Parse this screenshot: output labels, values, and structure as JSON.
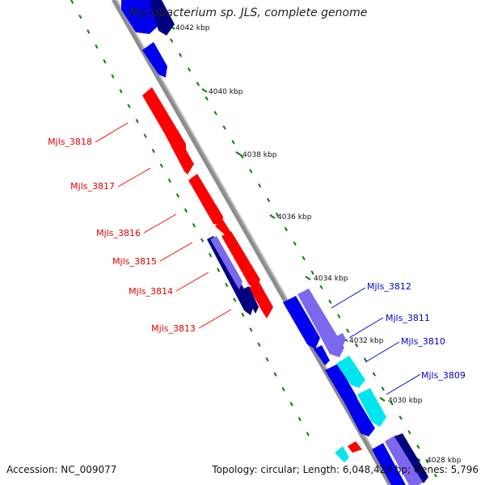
{
  "title": "Mycobacterium sp. JLS, complete genome",
  "footer": {
    "accession": "Accession: NC_009077",
    "summary": "Topology: circular; Length: 6,048,425 bp; Genes: 5,796"
  },
  "ticks": [
    "4042 kbp",
    "4040 kbp",
    "4038 kbp",
    "4036 kbp",
    "4034 kbp",
    "4032 kbp",
    "4030 kbp",
    "4028 kbp"
  ],
  "genes_left": [
    "Mjls_3818",
    "Mjls_3817",
    "Mjls_3816",
    "Mjls_3815",
    "Mjls_3814",
    "Mjls_3813"
  ],
  "genes_right": [
    "Mjls_3812",
    "Mjls_3811",
    "Mjls_3810",
    "Mjls_3809"
  ],
  "colors": {
    "forward_gene": "#ff0000",
    "reverse_gene": "#0000ee",
    "dark_blue": "#000080",
    "slate_gene": "#7b68ee",
    "cyan_gene": "#00e5ee",
    "backbone": "#808080",
    "tick_green": "#008000"
  }
}
